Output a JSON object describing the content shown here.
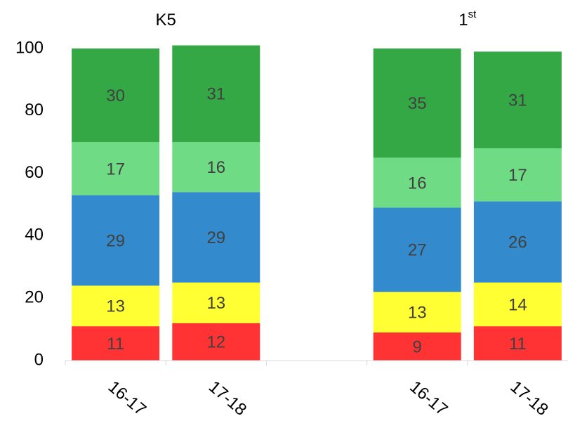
{
  "chart_data": {
    "type": "stacked_bar",
    "groups": [
      {
        "label": "K5"
      },
      {
        "label": "1",
        "superscript": "st"
      }
    ],
    "categories": [
      "16-17",
      "17-18",
      null,
      "16-17",
      "17-18"
    ],
    "series": [
      {
        "color": "#ff3333",
        "values": [
          11,
          12,
          null,
          9,
          11
        ]
      },
      {
        "color": "#ffff33",
        "values": [
          13,
          13,
          null,
          13,
          14
        ]
      },
      {
        "color": "#338acc",
        "values": [
          29,
          29,
          null,
          27,
          26
        ]
      },
      {
        "color": "#70db85",
        "values": [
          17,
          16,
          null,
          16,
          17
        ]
      },
      {
        "color": "#33a845",
        "values": [
          30,
          31,
          null,
          35,
          31
        ]
      }
    ],
    "ylim": [
      0,
      100
    ],
    "yticks": [
      0,
      20,
      40,
      60,
      80,
      100
    ],
    "grid": false
  }
}
